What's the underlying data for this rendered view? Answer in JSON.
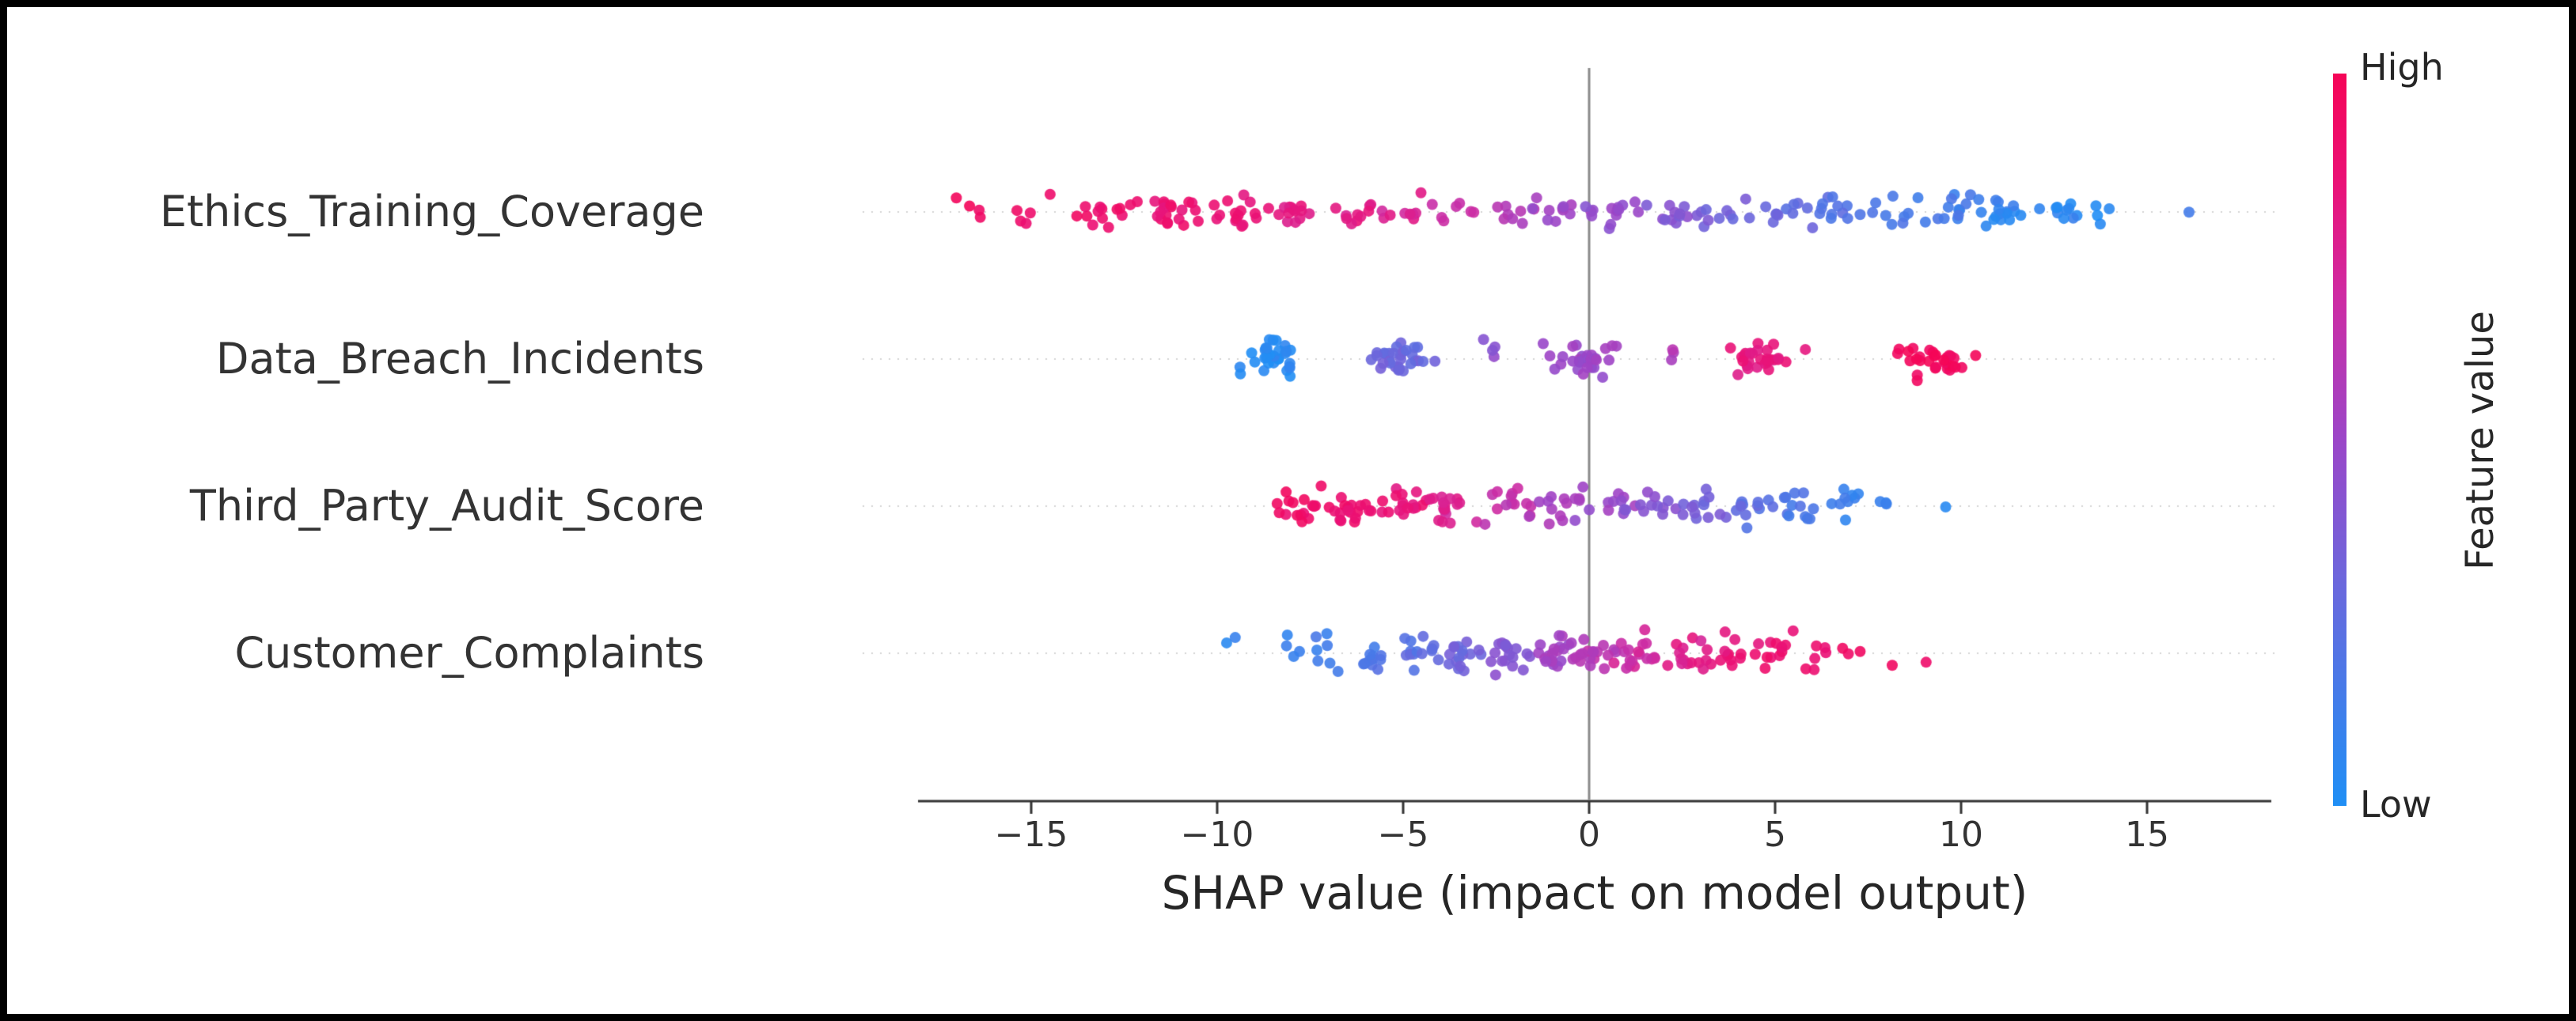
{
  "figure": {
    "background": "#ffffff",
    "border_color": "#000000"
  },
  "chart_data": {
    "type": "beeswarm",
    "title": "",
    "xlabel": "SHAP value (impact on model output)",
    "x_ticks": [
      -15,
      -10,
      -5,
      0,
      5,
      10,
      15
    ],
    "x_tick_labels": [
      "−15",
      "−10",
      "−5",
      "0",
      "5",
      "10",
      "15"
    ],
    "xlim": [
      -18,
      18.5
    ],
    "zero_line": 0,
    "grid": "dotted-row-lines",
    "legend_position": "right-colorbar",
    "colorbar": {
      "high_label": "High",
      "low_label": "Low",
      "title": "Feature value"
    },
    "colormap": [
      {
        "t": 0.0,
        "c": "#1f8ff5"
      },
      {
        "t": 0.3,
        "c": "#6a68dd"
      },
      {
        "t": 0.5,
        "c": "#9b46c8"
      },
      {
        "t": 0.7,
        "c": "#cf2ba2"
      },
      {
        "t": 0.85,
        "c": "#ea1277"
      },
      {
        "t": 1.0,
        "c": "#f50557"
      }
    ],
    "axis_colors": {
      "spine": "#333333",
      "zero_line": "#8a8a8a",
      "row_line": "#d4d4d4"
    },
    "cluster_format": [
      "x_center",
      "x_spread",
      "count",
      "feature_value_0to1"
    ],
    "features": [
      {
        "name": "Ethics_Training_Coverage",
        "clusters": [
          [
            -16.6,
            0.5,
            4,
            0.95
          ],
          [
            -14.9,
            0.5,
            5,
            0.92
          ],
          [
            -13.0,
            0.9,
            12,
            0.9
          ],
          [
            -11.3,
            0.9,
            20,
            0.88
          ],
          [
            -9.6,
            0.9,
            16,
            0.85
          ],
          [
            -8.0,
            0.8,
            14,
            0.82
          ],
          [
            -6.4,
            0.7,
            11,
            0.8
          ],
          [
            -5.0,
            0.6,
            8,
            0.76
          ],
          [
            -3.6,
            0.6,
            7,
            0.68
          ],
          [
            -2.2,
            0.6,
            8,
            0.6
          ],
          [
            -0.8,
            0.7,
            11,
            0.52
          ],
          [
            0.7,
            0.8,
            13,
            0.46
          ],
          [
            2.2,
            0.8,
            12,
            0.4
          ],
          [
            3.7,
            0.8,
            10,
            0.34
          ],
          [
            5.2,
            0.8,
            11,
            0.28
          ],
          [
            6.7,
            0.8,
            12,
            0.22
          ],
          [
            8.2,
            0.8,
            10,
            0.18
          ],
          [
            9.7,
            0.8,
            11,
            0.14
          ],
          [
            11.2,
            0.8,
            16,
            0.08
          ],
          [
            12.6,
            0.6,
            10,
            0.06
          ],
          [
            13.8,
            0.4,
            4,
            0.05
          ],
          [
            16.1,
            0.15,
            1,
            0.1
          ]
        ]
      },
      {
        "name": "Data_Breach_Incidents",
        "clusters": [
          [
            -8.6,
            0.8,
            30,
            0.04
          ],
          [
            -5.1,
            0.8,
            30,
            0.3
          ],
          [
            -2.6,
            0.4,
            4,
            0.45
          ],
          [
            -0.3,
            0.9,
            30,
            0.5
          ],
          [
            2.2,
            0.4,
            3,
            0.6
          ],
          [
            4.7,
            0.9,
            28,
            0.82
          ],
          [
            9.4,
            0.95,
            30,
            0.97
          ]
        ]
      },
      {
        "name": "Third_Party_Audit_Score",
        "clusters": [
          [
            -7.8,
            0.7,
            16,
            0.92
          ],
          [
            -6.4,
            0.7,
            18,
            0.88
          ],
          [
            -5.0,
            0.7,
            18,
            0.84
          ],
          [
            -3.6,
            0.7,
            16,
            0.75
          ],
          [
            -2.2,
            0.7,
            13,
            0.65
          ],
          [
            -0.9,
            0.7,
            12,
            0.55
          ],
          [
            0.4,
            0.7,
            12,
            0.5
          ],
          [
            1.7,
            0.7,
            12,
            0.42
          ],
          [
            3.0,
            0.7,
            13,
            0.33
          ],
          [
            4.3,
            0.7,
            12,
            0.25
          ],
          [
            5.6,
            0.7,
            12,
            0.18
          ],
          [
            6.9,
            0.6,
            9,
            0.12
          ],
          [
            8.0,
            0.4,
            3,
            0.08
          ],
          [
            9.5,
            0.15,
            1,
            0.06
          ]
        ]
      },
      {
        "name": "Customer_Complaints",
        "clusters": [
          [
            -9.6,
            0.3,
            2,
            0.08
          ],
          [
            -8.2,
            0.4,
            4,
            0.1
          ],
          [
            -7.0,
            0.5,
            7,
            0.14
          ],
          [
            -5.8,
            0.6,
            11,
            0.18
          ],
          [
            -4.6,
            0.6,
            14,
            0.24
          ],
          [
            -3.4,
            0.6,
            16,
            0.32
          ],
          [
            -2.2,
            0.6,
            18,
            0.42
          ],
          [
            -1.0,
            0.6,
            19,
            0.52
          ],
          [
            0.2,
            0.6,
            19,
            0.62
          ],
          [
            1.4,
            0.6,
            17,
            0.7
          ],
          [
            2.6,
            0.6,
            15,
            0.78
          ],
          [
            3.8,
            0.6,
            13,
            0.84
          ],
          [
            5.0,
            0.6,
            10,
            0.88
          ],
          [
            6.2,
            0.5,
            6,
            0.9
          ],
          [
            7.2,
            0.4,
            3,
            0.92
          ],
          [
            8.2,
            0.15,
            1,
            0.94
          ],
          [
            9.0,
            0.15,
            1,
            0.96
          ]
        ]
      }
    ]
  }
}
